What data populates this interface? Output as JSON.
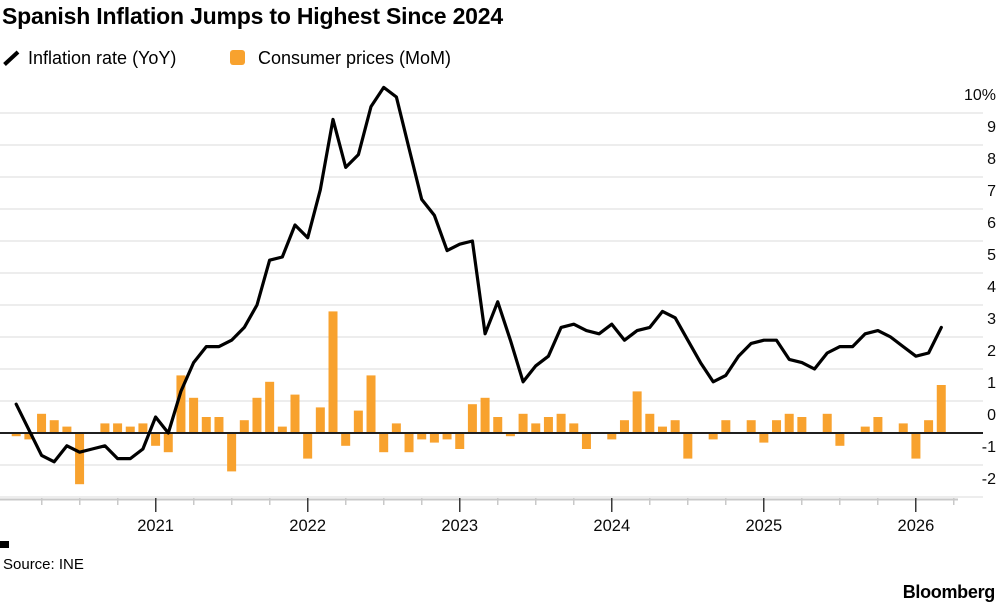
{
  "title": "Spanish Inflation Jumps to Highest Since 2024",
  "legend": [
    {
      "label": "Inflation rate (YoY)",
      "marker": "line",
      "color": "#000000"
    },
    {
      "label": "Consumer prices (MoM)",
      "marker": "square",
      "color": "#F8A22E"
    }
  ],
  "source": "Source: INE",
  "brand": "Bloomberg",
  "colors": {
    "bar_orange": "#F8A22E",
    "line_black": "#000000",
    "gridline": "#DBDBDB",
    "zero_line": "#1F1F1F",
    "axis_baseline": "#C9C9C9",
    "major_tick": "#3A3A3A",
    "text": "#0A0A0A"
  },
  "chart_data": {
    "type": "combo",
    "title": "Spanish Inflation Jumps to Highest Since 2024",
    "grid": true,
    "legend_position": "top-left",
    "x_months": [
      "Feb 2020",
      "Mar 2020",
      "Apr 2020",
      "May 2020",
      "Jun 2020",
      "Jul 2020",
      "Aug 2020",
      "Sep 2020",
      "Oct 2020",
      "Nov 2020",
      "Dec 2020",
      "Jan 2021",
      "Feb 2021",
      "Mar 2021",
      "Apr 2021",
      "May 2021",
      "Jun 2021",
      "Jul 2021",
      "Aug 2021",
      "Sep 2021",
      "Oct 2021",
      "Nov 2021",
      "Dec 2021",
      "Jan 2022",
      "Feb 2022",
      "Mar 2022",
      "Apr 2022",
      "May 2022",
      "Jun 2022",
      "Jul 2022",
      "Aug 2022",
      "Sep 2022",
      "Oct 2022",
      "Nov 2022",
      "Dec 2022",
      "Jan 2023",
      "Feb 2023",
      "Mar 2023",
      "Apr 2023",
      "May 2023",
      "Jun 2023",
      "Jul 2023",
      "Aug 2023",
      "Sep 2023",
      "Oct 2023",
      "Nov 2023",
      "Dec 2023",
      "Jan 2024",
      "Feb 2024",
      "Mar 2024",
      "Apr 2024",
      "May 2024",
      "Jun 2024",
      "Jul 2024",
      "Aug 2024",
      "Sep 2024",
      "Oct 2024",
      "Nov 2024",
      "Dec 2024",
      "Jan 2025",
      "Feb 2025",
      "Mar 2025",
      "Apr 2025",
      "May 2025",
      "Jun 2025",
      "Jul 2025",
      "Aug 2025",
      "Sep 2025",
      "Oct 2025",
      "Nov 2025",
      "Dec 2025",
      "Jan 2026",
      "Feb 2026",
      "Mar 2026"
    ],
    "series": [
      {
        "name": "Inflation rate (YoY)",
        "type": "line",
        "unit": "%",
        "color": "#000000",
        "values": [
          0.9,
          0.1,
          -0.7,
          -0.9,
          -0.4,
          -0.6,
          -0.5,
          -0.4,
          -0.8,
          -0.8,
          -0.5,
          0.5,
          0.0,
          1.3,
          2.2,
          2.7,
          2.7,
          2.9,
          3.3,
          4.0,
          5.4,
          5.5,
          6.5,
          6.1,
          7.6,
          9.8,
          8.3,
          8.7,
          10.2,
          10.8,
          10.5,
          8.9,
          7.3,
          6.8,
          5.7,
          5.9,
          6.0,
          3.1,
          4.1,
          2.9,
          1.6,
          2.1,
          2.4,
          3.3,
          3.4,
          3.2,
          3.1,
          3.4,
          2.9,
          3.2,
          3.3,
          3.8,
          3.6,
          2.9,
          2.2,
          1.6,
          1.8,
          2.4,
          2.8,
          2.9,
          2.9,
          2.3,
          2.2,
          2.0,
          2.5,
          2.7,
          2.7,
          3.1,
          3.2,
          3.0,
          2.7,
          2.4,
          2.5,
          3.3
        ]
      },
      {
        "name": "Consumer prices (MoM)",
        "type": "bar",
        "unit": "%",
        "color": "#F8A22E",
        "values": [
          -0.1,
          -0.2,
          0.6,
          0.4,
          0.2,
          -1.6,
          0.0,
          0.3,
          0.3,
          0.2,
          0.3,
          -0.4,
          -0.6,
          1.8,
          1.1,
          0.5,
          0.5,
          -1.2,
          0.4,
          1.1,
          1.6,
          0.2,
          1.2,
          -0.8,
          0.8,
          3.8,
          -0.4,
          0.7,
          1.8,
          -0.6,
          0.3,
          -0.6,
          -0.2,
          -0.3,
          -0.2,
          -0.5,
          0.9,
          1.1,
          0.5,
          -0.1,
          0.6,
          0.3,
          0.5,
          0.6,
          0.3,
          -0.5,
          0.0,
          -0.2,
          0.4,
          1.3,
          0.6,
          0.2,
          0.4,
          -0.8,
          0.0,
          -0.2,
          0.4,
          0.0,
          0.4,
          -0.3,
          0.4,
          0.6,
          0.5,
          0.0,
          0.6,
          -0.4,
          0.0,
          0.2,
          0.5,
          0.0,
          0.3,
          -0.8,
          0.4,
          1.5
        ]
      }
    ],
    "y_axis": {
      "side": "right",
      "ticks": [
        "10%",
        "9",
        "8",
        "7",
        "6",
        "5",
        "4",
        "3",
        "2",
        "1",
        "0",
        "-1",
        "-2"
      ],
      "range": [
        -2.6,
        10.6
      ],
      "zero_line_emphasized": true
    },
    "x_axis": {
      "year_labels": [
        "2021",
        "2022",
        "2023",
        "2024",
        "2025",
        "2026"
      ],
      "minor_tick_interval_months": 3,
      "start": "Feb 2020",
      "end": "Mar 2026"
    }
  }
}
